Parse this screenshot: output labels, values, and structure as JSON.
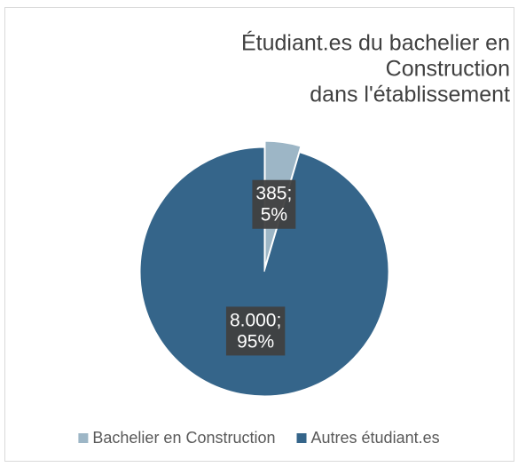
{
  "chart_data": {
    "type": "pie",
    "title": [
      "Étudiant.es du bachelier en",
      "Construction",
      "dans l'établissement"
    ],
    "categories": [
      "Bachelier en Construction",
      "Autres étudiant.es"
    ],
    "values": [
      385,
      8000
    ],
    "value_labels": [
      [
        "385;",
        "5%"
      ],
      [
        "8.000;",
        "95%"
      ]
    ],
    "colors": [
      "#9db6c6",
      "#35658a"
    ],
    "exploded": [
      true,
      false
    ],
    "legend": "bottom"
  }
}
